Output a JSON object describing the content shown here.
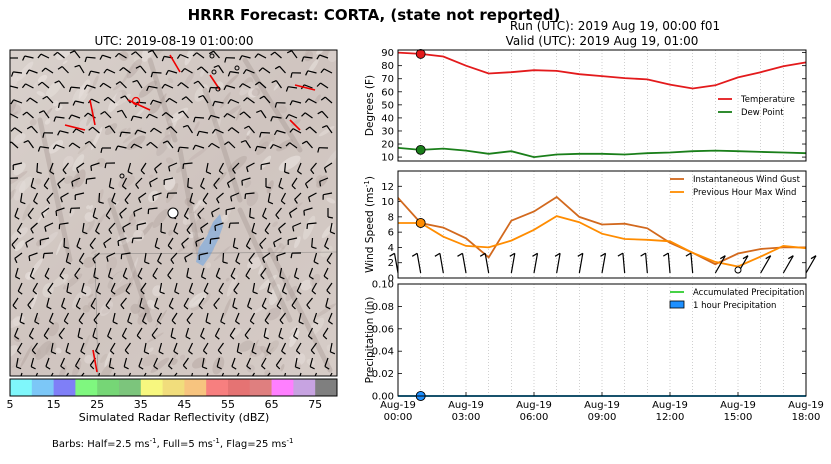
{
  "title": "HRRR Forecast: CORTA, (state not reported)",
  "map": {
    "utc_label": "UTC: 2019-08-19 01:00:00",
    "colorbar_label": "Simulated Radar Reflectivity (dBZ)",
    "colorbar_ticks": [
      "5",
      "15",
      "25",
      "35",
      "45",
      "55",
      "65",
      "75"
    ],
    "colorbar_colors": [
      "#7ff7fb",
      "#7cc7f7",
      "#7f7ff7",
      "#7ff77f",
      "#76d676",
      "#7cc57c",
      "#f7f77f",
      "#f1dd7c",
      "#f7c47f",
      "#f77f7f",
      "#e57373",
      "#df7f7f",
      "#ff7fff",
      "#c7a3e1",
      "#7f7f7f"
    ],
    "barb_note": "Barbs: Half=2.5 ms",
    "barb_note_units": [
      "-1",
      ", Full=5 ms",
      "-1",
      ", Flag=25 ms",
      "-1"
    ]
  },
  "header": {
    "run": "Run (UTC): 2019 Aug 19, 00:00 f01",
    "valid": "Valid (UTC): 2019 Aug 19, 01:00"
  },
  "chart_data": [
    {
      "type": "line",
      "ylabel": "Degrees (F)",
      "ylim": [
        7,
        92
      ],
      "yticks": [
        10,
        20,
        30,
        40,
        50,
        60,
        70,
        80,
        90
      ],
      "x": [
        0,
        1,
        2,
        3,
        4,
        5,
        6,
        7,
        8,
        9,
        10,
        11,
        12,
        13,
        14,
        15,
        16,
        17,
        18
      ],
      "series": [
        {
          "name": "Temperature",
          "color": "#e31a1c",
          "values": [
            90,
            89,
            87,
            80,
            74,
            75,
            76.5,
            76,
            73.5,
            72,
            70.5,
            69.5,
            65.5,
            62.5,
            65,
            71,
            75,
            79.5,
            82.5
          ]
        },
        {
          "name": "Dew Point",
          "color": "#1a7f1a",
          "values": [
            17,
            15.5,
            16.5,
            15,
            12.5,
            14.5,
            10,
            12,
            12.5,
            12.5,
            12,
            13,
            13.5,
            14.5,
            15,
            14.5,
            14,
            13.5,
            13
          ]
        }
      ],
      "current_index": 1,
      "legend": "right"
    },
    {
      "type": "line",
      "ylabel": "Wind Speed (ms",
      "ylabel_sup": "-1",
      "ylabel_tail": ")",
      "ylim": [
        0,
        14
      ],
      "yticks": [
        0,
        2,
        4,
        6,
        8,
        10,
        12
      ],
      "x": [
        0,
        1,
        2,
        3,
        4,
        5,
        6,
        7,
        8,
        9,
        10,
        11,
        12,
        13,
        14,
        15,
        16,
        17,
        18
      ],
      "series": [
        {
          "name": "Instantaneous Wind Gust",
          "color": "#d2691e",
          "values": [
            10.5,
            7.2,
            6.6,
            5.2,
            2.7,
            7.5,
            8.7,
            10.6,
            8.0,
            7.0,
            7.1,
            6.5,
            4.6,
            3.3,
            1.8,
            3.2,
            3.8,
            4.0,
            4.0
          ]
        },
        {
          "name": "Previous Hour Max Wind",
          "color": "#ff8c00",
          "values": [
            7.2,
            7.2,
            5.4,
            4.2,
            4.0,
            4.9,
            6.3,
            8.1,
            7.3,
            5.8,
            5.1,
            5.0,
            4.8,
            3.3,
            2.1,
            1.5,
            2.8,
            4.2,
            3.9
          ]
        }
      ],
      "current_index": 1,
      "legend": "top-right"
    },
    {
      "type": "line",
      "ylabel": "Precipitation (in)",
      "ylim": [
        0,
        0.1
      ],
      "yticks": [
        "0.00",
        "0.02",
        "0.04",
        "0.06",
        "0.08",
        "0.10"
      ],
      "x": [
        0,
        1,
        2,
        3,
        4,
        5,
        6,
        7,
        8,
        9,
        10,
        11,
        12,
        13,
        14,
        15,
        16,
        17,
        18
      ],
      "series": [
        {
          "name": "Accumulated Precipitation",
          "color": "#32cd32",
          "values": [
            0,
            0,
            0,
            0,
            0,
            0,
            0,
            0,
            0,
            0,
            0,
            0,
            0,
            0,
            0,
            0,
            0,
            0,
            0
          ]
        },
        {
          "name": "1 hour Precipitation",
          "color": "#1e90ff",
          "values": [
            0,
            0,
            0,
            0,
            0,
            0,
            0,
            0,
            0,
            0,
            0,
            0,
            0,
            0,
            0,
            0,
            0,
            0,
            0
          ]
        }
      ],
      "current_index": 1,
      "legend": "top-right",
      "xtick_labels": [
        [
          "Aug-19",
          "00:00"
        ],
        [
          "Aug-19",
          "03:00"
        ],
        [
          "Aug-19",
          "06:00"
        ],
        [
          "Aug-19",
          "09:00"
        ],
        [
          "Aug-19",
          "12:00"
        ],
        [
          "Aug-19",
          "15:00"
        ],
        [
          "Aug-19",
          "18:00"
        ]
      ],
      "xtick_hours": [
        0,
        3,
        6,
        9,
        12,
        15,
        18
      ]
    }
  ]
}
